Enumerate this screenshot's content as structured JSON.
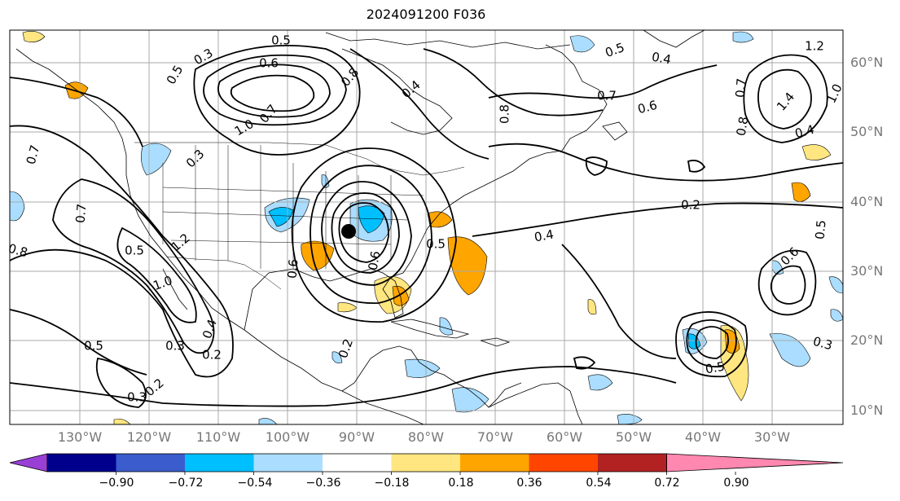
{
  "title": "2024091200 F036",
  "latitude_labels": [
    "60°N",
    "50°N",
    "40°N",
    "30°N",
    "20°N",
    "10°N"
  ],
  "longitude_labels": [
    "130°W",
    "120°W",
    "110°W",
    "100°W",
    "90°W",
    "80°W",
    "70°W",
    "60°W",
    "50°W",
    "40°W",
    "30°W"
  ],
  "colorbar": {
    "ticks": [
      "−0.90",
      "−0.72",
      "−0.54",
      "−0.36",
      "−0.18",
      "0.18",
      "0.36",
      "0.54",
      "0.72",
      "0.90"
    ],
    "colors": [
      "#9a3fd6",
      "#00008c",
      "#3a5ccc",
      "#00bfff",
      "#aaddff",
      "#ffffff",
      "#ffe680",
      "#ffa500",
      "#ff4500",
      "#b22222",
      "#ff88b0"
    ]
  },
  "contour_labels": [
    "0.5",
    "0.3",
    "0.6",
    "0.5",
    "0.8",
    "0.4",
    "0.7",
    "0.8",
    "0.5",
    "0.4",
    "0.7",
    "0.6",
    "0.7",
    "0.8",
    "1.4",
    "1.0",
    "1.2",
    "1.0",
    "0.7",
    "0.3",
    "0.7",
    "0.8",
    "0.5",
    "1.0",
    "1.2",
    "0.6",
    "0.2",
    "0.5",
    "0.4",
    "0.5",
    "0.4",
    "0.6",
    "0.3",
    "0.5",
    "0.3",
    "0.2",
    "0.4",
    "0.3",
    "0.2",
    "0.2",
    "0.5",
    "0.6"
  ]
}
